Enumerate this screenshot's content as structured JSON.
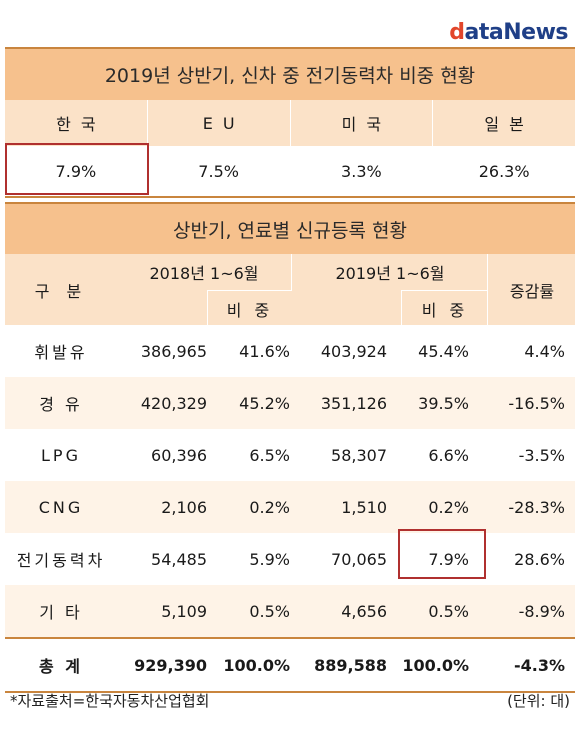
{
  "logo": {
    "d": "d",
    "rest": "ataNews"
  },
  "panel1": {
    "title": "2019년 상반기, 신차 중 전기동력차 비중 현황",
    "headers": [
      "한국",
      "EU",
      "미국",
      "일본"
    ],
    "values": [
      "7.9%",
      "7.5%",
      "3.3%",
      "26.3%"
    ]
  },
  "panel2": {
    "title": "상반기, 연료별 신규등록 현황",
    "header": {
      "category": "구  분",
      "y2018": "2018년 1~6월",
      "y2019": "2019년 1~6월",
      "share": "비  중",
      "share2": "비  중",
      "change": "증감률"
    },
    "rows": [
      [
        "휘발유",
        "386,965",
        "41.6%",
        "403,924",
        "45.4%",
        "4.4%"
      ],
      [
        "경  유",
        "420,329",
        "45.2%",
        "351,126",
        "39.5%",
        "-16.5%"
      ],
      [
        "LPG",
        "60,396",
        "6.5%",
        "58,307",
        "6.6%",
        "-3.5%"
      ],
      [
        "CNG",
        "2,106",
        "0.2%",
        "1,510",
        "0.2%",
        "-28.3%"
      ],
      [
        "전기동력차",
        "54,485",
        "5.9%",
        "70,065",
        "7.9%",
        "28.6%"
      ],
      [
        "기  타",
        "5,109",
        "0.5%",
        "4,656",
        "0.5%",
        "-8.9%"
      ],
      [
        "총  계",
        "929,390",
        "100.0%",
        "889,588",
        "100.0%",
        "-4.3%"
      ]
    ]
  },
  "footnote": "*자료출처=한국자동차산업협회",
  "unit": "(단위: 대)"
}
